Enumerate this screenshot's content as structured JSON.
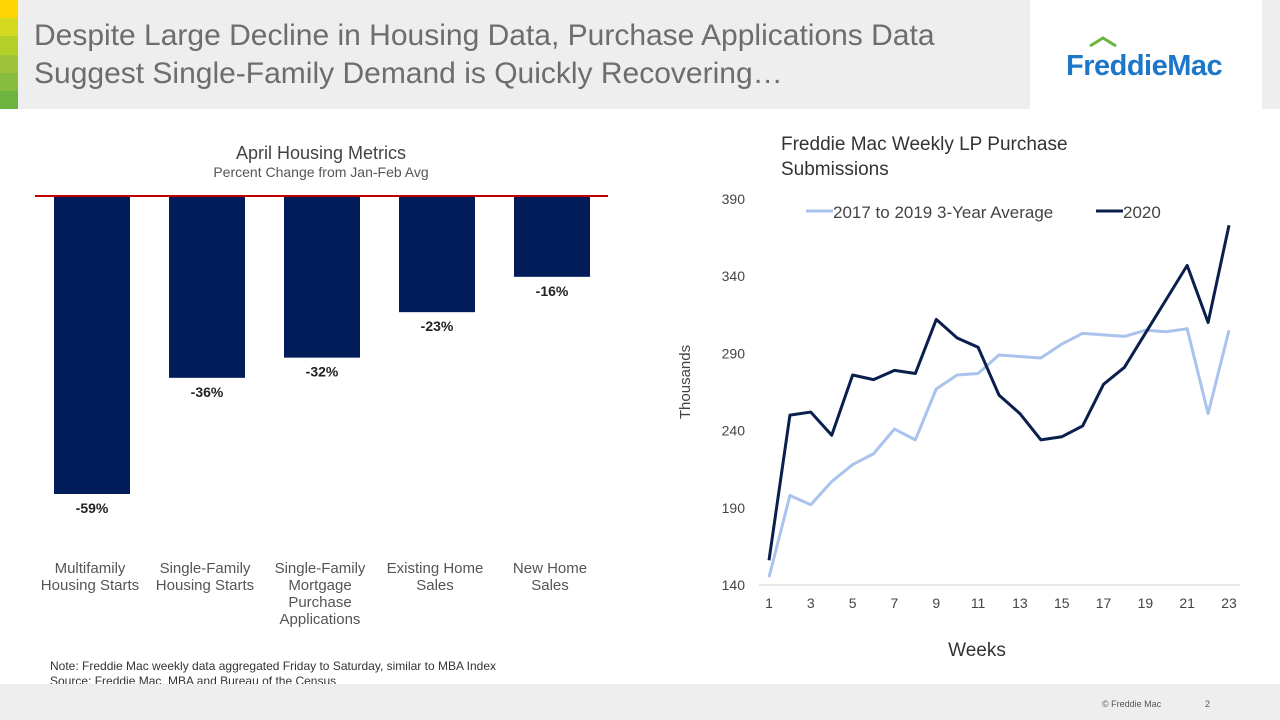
{
  "slide": {
    "title_line1": "Despite Large Decline in Housing Data, Purchase Applications Data",
    "title_line2": "Suggest Single-Family Demand is Quickly Recovering…",
    "logo_text": "FreddieMac",
    "note_line1": "Note: Freddie Mac weekly data aggregated Friday to Saturday, similar to MBA Index",
    "note_line2": "Source: Freddie Mac, MBA  and Bureau of the  Census",
    "copyright": "© Freddie Mac",
    "page_number": "2"
  },
  "colors": {
    "accent_stripes": [
      "#ffd400",
      "#d4d81f",
      "#b5cf2a",
      "#9dc43a",
      "#86bd3f",
      "#6cb33f"
    ],
    "bar": "#021c5a",
    "zero_line": "#c00000",
    "series_avg": "#a9c4ec",
    "series_2020": "#0b1f4d",
    "logo_blue": "#1d77c8",
    "logo_green": "#6cb33f"
  },
  "chart_data": [
    {
      "type": "bar",
      "title": "April Housing Metrics",
      "subtitle": "Percent Change from Jan-Feb Avg",
      "categories": [
        [
          "Multifamily",
          "Housing Starts"
        ],
        [
          "Single-Family",
          "Housing Starts"
        ],
        [
          "Single-Family",
          "Mortgage",
          "Purchase",
          "Applications"
        ],
        [
          "Existing Home",
          "Sales"
        ],
        [
          "New Home",
          "Sales"
        ]
      ],
      "values": [
        -59,
        -36,
        -32,
        -23,
        -16
      ],
      "data_labels": [
        "-59%",
        "-36%",
        "-32%",
        "-23%",
        "-16%"
      ],
      "ylim": [
        -59,
        0
      ],
      "grid": false,
      "legend": "none"
    },
    {
      "type": "line",
      "title": "Freddie Mac Weekly LP Purchase Submissions",
      "title_lines": [
        "Freddie Mac Weekly LP Purchase",
        "Submissions"
      ],
      "xlabel": "Weeks",
      "ylabel": "Thousands",
      "x": [
        1,
        2,
        3,
        4,
        5,
        6,
        7,
        8,
        9,
        10,
        11,
        12,
        13,
        14,
        15,
        16,
        17,
        18,
        19,
        20,
        21,
        22,
        23
      ],
      "x_ticks": [
        1,
        3,
        5,
        7,
        9,
        11,
        13,
        15,
        17,
        19,
        21,
        23
      ],
      "y_ticks": [
        140,
        190,
        240,
        290,
        340,
        390
      ],
      "ylim": [
        140,
        390
      ],
      "legend": "top",
      "series": [
        {
          "name": "2017 to 2019 3-Year Average",
          "values": [
            145,
            198,
            192,
            207,
            218,
            225,
            241,
            234,
            267,
            276,
            277,
            289,
            288,
            287,
            296,
            303,
            302,
            301,
            305,
            304,
            306,
            251,
            305
          ]
        },
        {
          "name": "2020",
          "values": [
            156,
            250,
            252,
            237,
            276,
            273,
            279,
            277,
            312,
            300,
            294,
            263,
            251,
            234,
            236,
            243,
            270,
            281,
            303,
            325,
            347,
            310,
            373
          ]
        }
      ]
    }
  ]
}
